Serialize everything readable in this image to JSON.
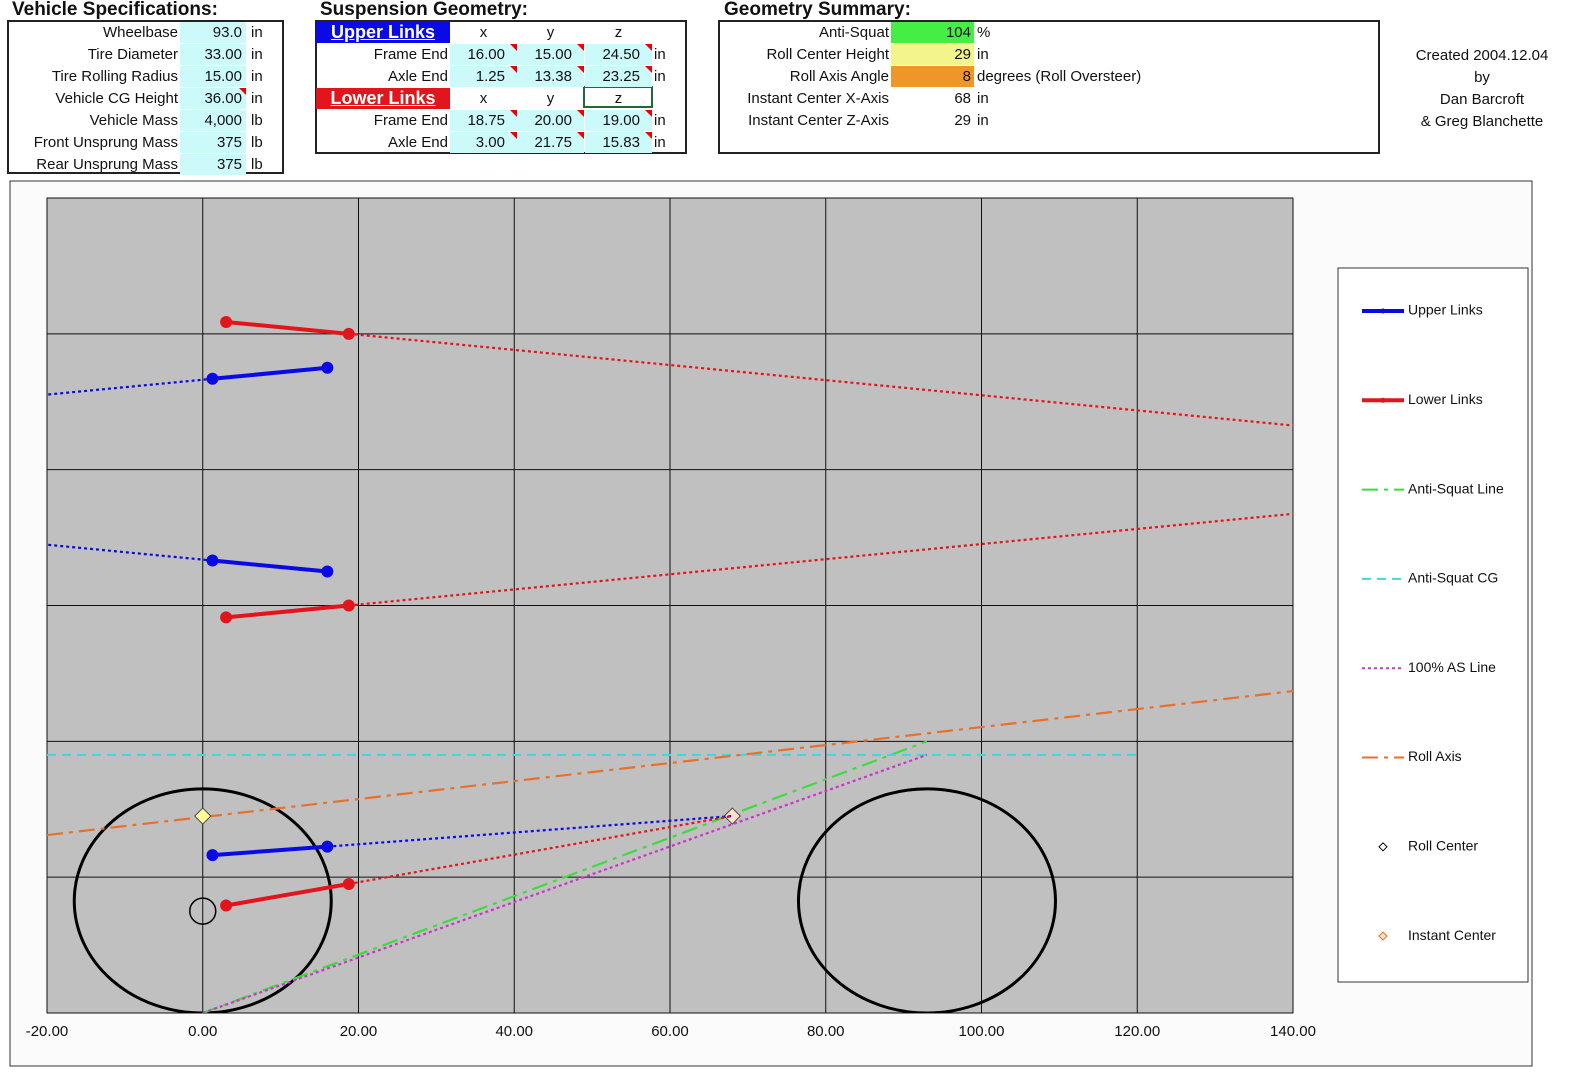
{
  "vehicle_specs": {
    "title": "Vehicle Specifications:",
    "rows": [
      [
        "Wheelbase",
        "93.0",
        "in"
      ],
      [
        "Tire Diameter",
        "33.00",
        "in"
      ],
      [
        "Tire Rolling Radius",
        "15.00",
        "in"
      ],
      [
        "Vehicle CG Height",
        "36.00",
        "in"
      ],
      [
        "Vehicle Mass",
        "4,000",
        "lb"
      ],
      [
        "Front Unsprung Mass",
        "375",
        "lb"
      ],
      [
        "Rear Unsprung Mass",
        "375",
        "lb"
      ]
    ]
  },
  "suspension_geometry": {
    "title": "Suspension Geometry:",
    "groups": [
      {
        "name": "Upper Links",
        "columns": [
          "x",
          "y",
          "z"
        ],
        "rows": [
          [
            "Frame End",
            "16.00",
            "15.00",
            "24.50",
            "in"
          ],
          [
            "Axle End",
            "1.25",
            "13.38",
            "23.25",
            "in"
          ]
        ]
      },
      {
        "name": "Lower Links",
        "columns": [
          "x",
          "y",
          "z"
        ],
        "rows": [
          [
            "Frame End",
            "18.75",
            "20.00",
            "19.00",
            "in"
          ],
          [
            "Axle End",
            "3.00",
            "21.75",
            "15.83",
            "in"
          ]
        ]
      }
    ]
  },
  "geometry_summary": {
    "title": "Geometry Summary:",
    "rows": [
      [
        "Anti-Squat",
        "104",
        "%"
      ],
      [
        "Roll Center Height",
        "29",
        "in"
      ],
      [
        "Roll Axis Angle",
        "8",
        "degrees (Roll Oversteer)"
      ],
      [
        "Instant Center X-Axis",
        "68",
        "in"
      ],
      [
        "Instant Center Z-Axis",
        "29",
        "in"
      ]
    ]
  },
  "credits": [
    "Created 2004.12.04",
    "by",
    "Dan Barcroft",
    "& Greg Blanchette"
  ],
  "chart_data": {
    "type": "line",
    "xlim": [
      -20,
      140
    ],
    "xticks": [
      {
        "value": -20,
        "label": "-20.00"
      },
      {
        "value": 0,
        "label": "0.00"
      },
      {
        "value": 20,
        "label": "20.00"
      },
      {
        "value": 40,
        "label": "40.00"
      },
      {
        "value": 60,
        "label": "60.00"
      },
      {
        "value": 80,
        "label": "80.00"
      },
      {
        "value": 100,
        "label": "100.00"
      },
      {
        "value": 120,
        "label": "120.00"
      },
      {
        "value": 140,
        "label": "140.00"
      }
    ],
    "ylim": [
      0,
      120
    ],
    "yticks": [
      0,
      20,
      40,
      60,
      80,
      100,
      120
    ],
    "grid": true,
    "legend": "right",
    "series": [
      {
        "name": "Upper Links",
        "color": "#0a0ae6",
        "dash": "solid",
        "marker": "circle",
        "x": [
          1.25,
          16,
          null,
          1.25,
          16,
          null,
          1.25,
          16
        ],
        "values": [
          23.25,
          24.5,
          null,
          93.38,
          95,
          null,
          66.62,
          65
        ]
      },
      {
        "name": "Lower Links",
        "color": "#e3151c",
        "dash": "solid",
        "marker": "circle",
        "x": [
          3,
          18.75,
          null,
          3,
          18.75,
          null,
          3,
          18.75
        ],
        "values": [
          15.83,
          19,
          null,
          101.75,
          100,
          null,
          58.25,
          60
        ]
      },
      {
        "name": "Anti-Squat Line",
        "color": "#3ddc3d",
        "dash": "dashdot",
        "x": [
          0,
          93
        ],
        "values": [
          0,
          40
        ]
      },
      {
        "name": "Anti-Squat CG",
        "color": "#3fd8e0",
        "dash": "dash",
        "x": [
          -20,
          120
        ],
        "values": [
          38,
          38
        ]
      },
      {
        "name": "100% AS Line",
        "color": "#cc33cc",
        "dash": "dot",
        "x": [
          0,
          93
        ],
        "values": [
          0,
          38
        ]
      },
      {
        "name": "Roll Axis",
        "color": "#e8702a",
        "dash": "dashdot",
        "x": [
          -20,
          140
        ],
        "values": [
          26.2,
          47.4
        ]
      },
      {
        "name": "Roll Center",
        "color": "#ffff99",
        "marker": "diamond",
        "x": [
          0
        ],
        "values": [
          29
        ]
      },
      {
        "name": "Instant Center",
        "color": "#ffe0cc",
        "marker": "diamond",
        "x": [
          68
        ],
        "values": [
          29
        ]
      },
      {
        "color": "#0a0ae6",
        "dash": "dot",
        "x": [
          16,
          68,
          null,
          1.25,
          -20,
          null,
          1.25,
          -20
        ],
        "values": [
          24.5,
          29,
          null,
          93.38,
          91.05,
          null,
          66.62,
          68.95
        ]
      },
      {
        "color": "#e3151c",
        "dash": "dot",
        "x": [
          18.75,
          68,
          null,
          18.75,
          140,
          null,
          18.75,
          140
        ],
        "values": [
          19,
          29,
          null,
          100,
          86.5,
          null,
          60,
          73.5
        ]
      }
    ],
    "wheels": {
      "x": [
        0,
        93
      ],
      "y": 16.5,
      "diameter": 33
    },
    "axle": {
      "x": 0,
      "y": 15
    }
  }
}
